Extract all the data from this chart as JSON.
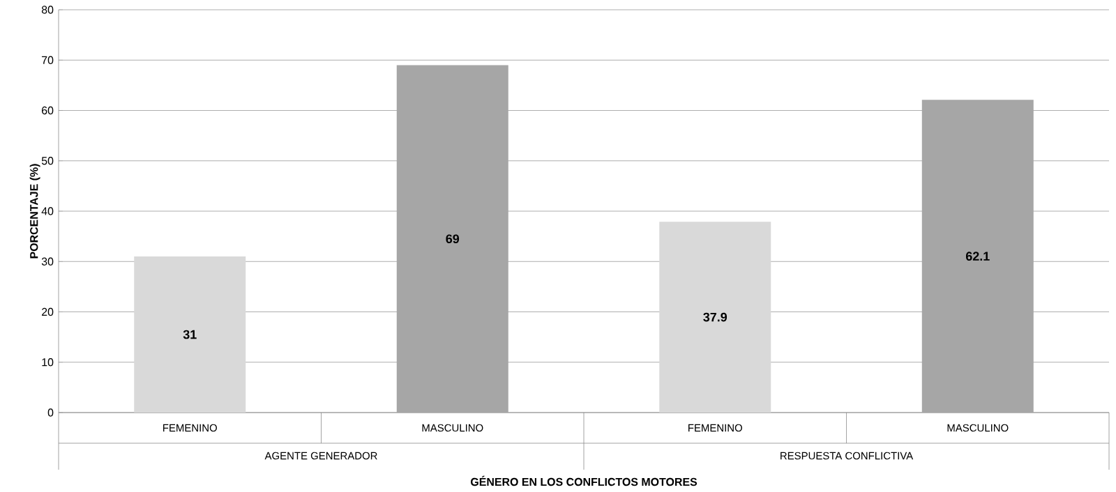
{
  "chart_data": {
    "type": "bar",
    "xlabel": "GÉNERO EN LOS CONFLICTOS MOTORES",
    "ylabel": "PORCENTAJE (%)",
    "categories": [
      "FEMENINO",
      "MASCULINO",
      "FEMENINO",
      "MASCULINO"
    ],
    "values": [
      31,
      69,
      37.9,
      62.1
    ],
    "colors": [
      "#d9d9d9",
      "#a6a6a6",
      "#d9d9d9",
      "#a6a6a6"
    ],
    "ylim": [
      0,
      80
    ],
    "yticks": [
      0,
      10,
      20,
      30,
      40,
      50,
      60,
      70,
      80
    ],
    "grid": "y",
    "data_labels": true,
    "annotations": [
      "AGENTE GENERADOR",
      "RESPUESTA CONFLICTIVA"
    ]
  }
}
